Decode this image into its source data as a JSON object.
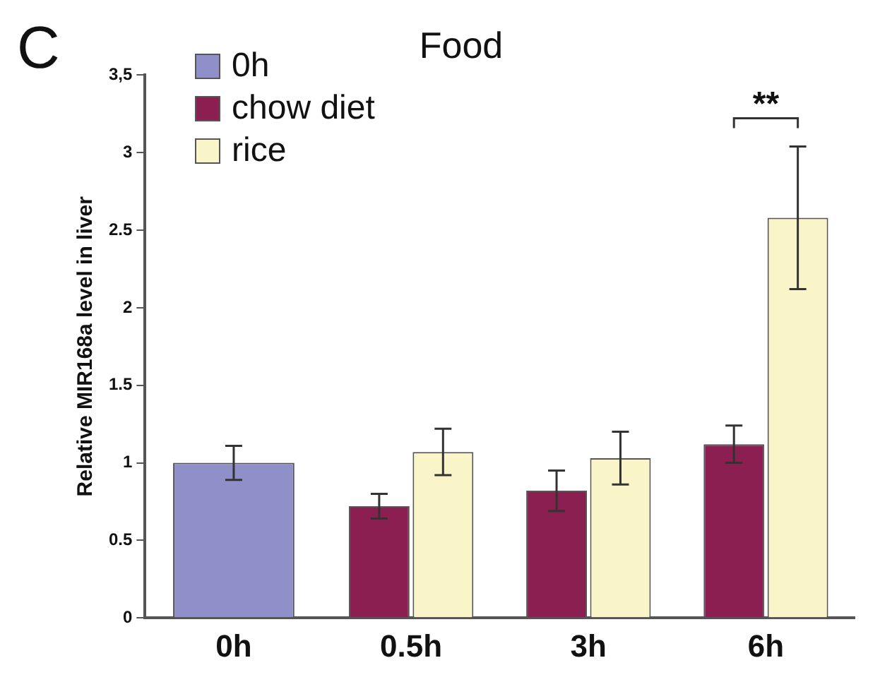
{
  "chart_data": {
    "type": "bar",
    "title": "Food",
    "ylabel": "Relative MIR168a level in liver",
    "categories": [
      "0h",
      "0.5h",
      "3h",
      "6h"
    ],
    "series": [
      {
        "name": "0h",
        "color": "#8f8fc9",
        "values": [
          1.0,
          null,
          null,
          null
        ],
        "errors": [
          0.11,
          null,
          null,
          null
        ]
      },
      {
        "name": "chow diet",
        "color": "#8b1f52",
        "values": [
          null,
          0.72,
          0.82,
          1.12
        ],
        "errors": [
          null,
          0.08,
          0.13,
          0.12
        ]
      },
      {
        "name": "rice",
        "color": "#faf5c8",
        "values": [
          null,
          1.07,
          1.03,
          2.58
        ],
        "errors": [
          null,
          0.15,
          0.17,
          0.46
        ]
      }
    ],
    "ylim": [
      0,
      3.5
    ],
    "yticks": [
      0,
      0.5,
      1,
      1.5,
      2,
      2.5,
      3,
      {
        "value": 3.5,
        "label": "3,5"
      }
    ],
    "grid": false,
    "legend": "top left",
    "annotations": [
      "C",
      "**"
    ]
  }
}
